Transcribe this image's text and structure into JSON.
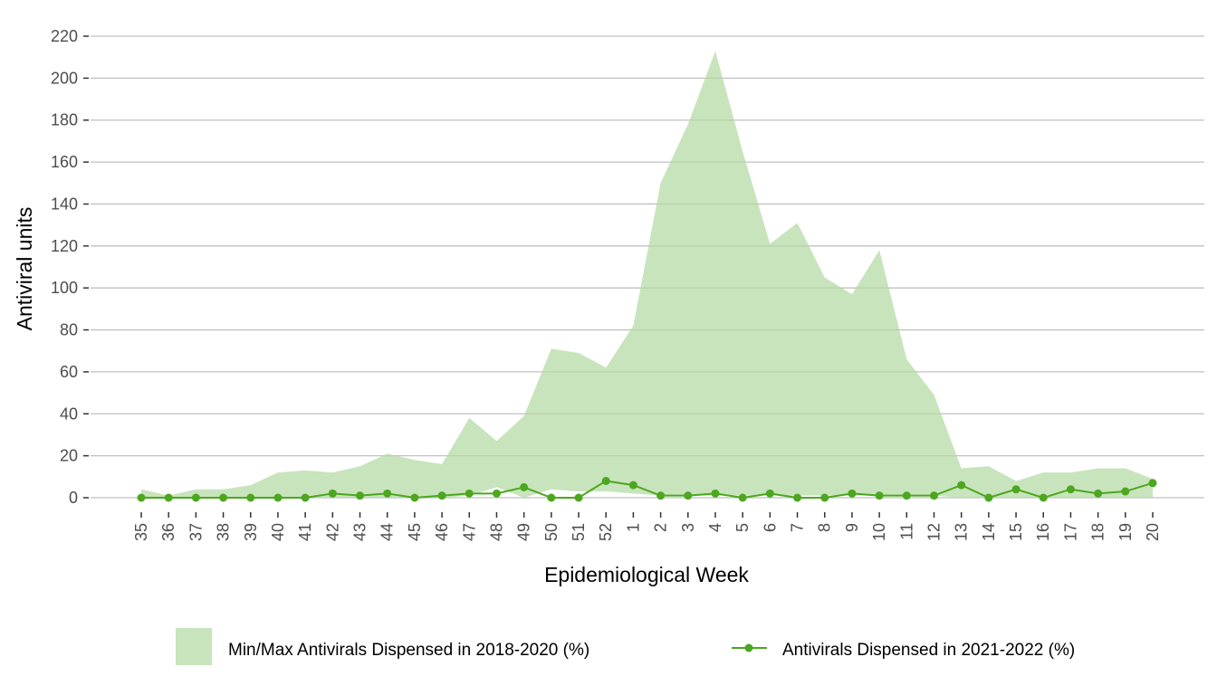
{
  "chart_data": {
    "type": "line",
    "title": "",
    "xlabel": "Epidemiological Week",
    "ylabel": "Antiviral units",
    "ylim": [
      0,
      220
    ],
    "yticks": [
      0,
      20,
      40,
      60,
      80,
      100,
      120,
      140,
      160,
      180,
      200,
      220
    ],
    "grid": "horizontal",
    "legend_position": "bottom",
    "categories": [
      "35",
      "36",
      "37",
      "38",
      "39",
      "40",
      "41",
      "42",
      "43",
      "44",
      "45",
      "46",
      "47",
      "48",
      "49",
      "50",
      "51",
      "52",
      "1",
      "2",
      "3",
      "4",
      "5",
      "6",
      "7",
      "8",
      "9",
      "10",
      "11",
      "12",
      "13",
      "14",
      "15",
      "16",
      "17",
      "18",
      "19",
      "20"
    ],
    "ribbon": {
      "name": "Min/Max Antivirals Dispensed in 2018-2020 (%)",
      "color": "#c8e4bc",
      "min": [
        0,
        0,
        0,
        0,
        0,
        0,
        0,
        0,
        0,
        0,
        0,
        0,
        1,
        5,
        0,
        4,
        3,
        3,
        2,
        1,
        1,
        1,
        1,
        1,
        1,
        1,
        1,
        1,
        1,
        1,
        0,
        0,
        0,
        0,
        0,
        0,
        0,
        0
      ],
      "max": [
        4,
        1,
        4,
        4,
        6,
        12,
        13,
        12,
        15,
        21,
        18,
        16,
        38,
        27,
        39,
        71,
        69,
        62,
        82,
        150,
        178,
        213,
        165,
        121,
        131,
        105,
        97,
        118,
        66,
        49,
        14,
        15,
        8,
        12,
        12,
        14,
        14,
        9
      ]
    },
    "series": [
      {
        "name": "Antivirals Dispensed in 2021-2022 (%)",
        "color": "#4ca71f",
        "values": [
          0,
          0,
          0,
          0,
          0,
          0,
          0,
          2,
          1,
          2,
          0,
          1,
          2,
          2,
          5,
          0,
          0,
          8,
          6,
          1,
          1,
          2,
          0,
          2,
          0,
          0,
          2,
          1,
          1,
          1,
          6,
          0,
          4,
          0,
          4,
          2,
          3,
          7
        ]
      }
    ]
  },
  "colors": {
    "grid": "#d3d3d3",
    "tick": "#333333"
  }
}
